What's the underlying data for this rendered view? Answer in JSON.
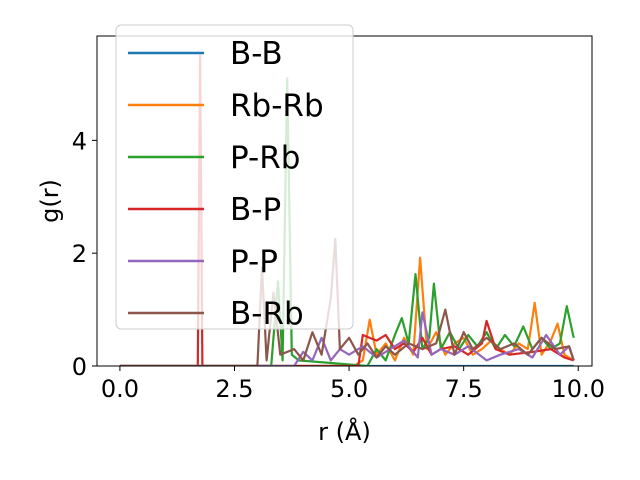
{
  "chart_data": {
    "type": "line",
    "xlabel": "r (Å)",
    "ylabel": "g(r)",
    "xlim": [
      -0.5,
      10.3
    ],
    "ylim": [
      0,
      5.85
    ],
    "xticks": [
      0.0,
      2.5,
      5.0,
      7.5,
      10.0
    ],
    "xtick_labels": [
      "0.0",
      "2.5",
      "5.0",
      "7.5",
      "10.0"
    ],
    "yticks": [
      0,
      2,
      4
    ],
    "ytick_labels": [
      "0",
      "2",
      "4"
    ],
    "grid": false,
    "legend_position": "upper-left",
    "series": [
      {
        "name": "B-B",
        "color": "#1f77b4",
        "points": [
          [
            0,
            0
          ],
          [
            9.9,
            0
          ]
        ]
      },
      {
        "name": "Rb-Rb",
        "color": "#ff7f0e",
        "points": [
          [
            0,
            0
          ],
          [
            5.1,
            0
          ],
          [
            5.3,
            0.1
          ],
          [
            5.45,
            0.82
          ],
          [
            5.6,
            0.2
          ],
          [
            5.8,
            0.4
          ],
          [
            6.0,
            0.1
          ],
          [
            6.2,
            0.5
          ],
          [
            6.4,
            0.2
          ],
          [
            6.55,
            1.92
          ],
          [
            6.7,
            0.3
          ],
          [
            6.9,
            0.6
          ],
          [
            7.1,
            0.2
          ],
          [
            7.3,
            0.4
          ],
          [
            7.5,
            0.5
          ],
          [
            7.7,
            0.2
          ],
          [
            7.9,
            0.3
          ],
          [
            8.1,
            0.45
          ],
          [
            8.3,
            0.3
          ],
          [
            8.5,
            0.2
          ],
          [
            8.7,
            0.4
          ],
          [
            8.9,
            0.3
          ],
          [
            9.05,
            1.12
          ],
          [
            9.2,
            0.2
          ],
          [
            9.4,
            0.45
          ],
          [
            9.55,
            0.75
          ],
          [
            9.7,
            0.2
          ],
          [
            9.9,
            0.1
          ]
        ]
      },
      {
        "name": "P-Rb",
        "color": "#2ca02c",
        "points": [
          [
            0,
            0
          ],
          [
            3.3,
            0
          ],
          [
            3.45,
            1.5
          ],
          [
            3.55,
            0.1
          ],
          [
            3.65,
            5.1
          ],
          [
            3.75,
            0.2
          ],
          [
            3.9,
            0.1
          ],
          [
            5.4,
            0
          ],
          [
            5.6,
            0.3
          ],
          [
            5.8,
            0.1
          ],
          [
            6.0,
            0.55
          ],
          [
            6.15,
            0.85
          ],
          [
            6.3,
            0.4
          ],
          [
            6.45,
            1.63
          ],
          [
            6.6,
            0.3
          ],
          [
            6.75,
            0.5
          ],
          [
            6.85,
            1.46
          ],
          [
            7.0,
            0.3
          ],
          [
            7.2,
            0.6
          ],
          [
            7.4,
            0.3
          ],
          [
            7.6,
            0.55
          ],
          [
            7.8,
            0.35
          ],
          [
            8.0,
            0.6
          ],
          [
            8.2,
            0.3
          ],
          [
            8.4,
            0.55
          ],
          [
            8.6,
            0.35
          ],
          [
            8.8,
            0.7
          ],
          [
            9.0,
            0.3
          ],
          [
            9.2,
            0.5
          ],
          [
            9.4,
            0.3
          ],
          [
            9.6,
            0.4
          ],
          [
            9.75,
            1.06
          ],
          [
            9.9,
            0.5
          ]
        ]
      },
      {
        "name": "B-P",
        "color": "#d62728",
        "points": [
          [
            0,
            0
          ],
          [
            1.7,
            0
          ],
          [
            1.75,
            5.5
          ],
          [
            1.8,
            0
          ],
          [
            1.9,
            0
          ],
          [
            3.5,
            0
          ],
          [
            5.2,
            0
          ],
          [
            5.3,
            0.55
          ],
          [
            5.6,
            0.45
          ],
          [
            5.8,
            0.55
          ],
          [
            6.0,
            0.3
          ],
          [
            6.2,
            0.4
          ],
          [
            6.4,
            0.25
          ],
          [
            6.6,
            0.5
          ],
          [
            6.8,
            0.2
          ],
          [
            7.0,
            0.3
          ],
          [
            7.3,
            0.35
          ],
          [
            7.6,
            0.2
          ],
          [
            7.9,
            0.4
          ],
          [
            8.0,
            0.8
          ],
          [
            8.2,
            0.3
          ],
          [
            8.5,
            0.2
          ],
          [
            9.0,
            0.25
          ],
          [
            9.4,
            0.3
          ],
          [
            9.7,
            0.15
          ],
          [
            9.9,
            0.1
          ]
        ]
      },
      {
        "name": "P-P",
        "color": "#9467bd",
        "points": [
          [
            0,
            0
          ],
          [
            3.8,
            0
          ],
          [
            4.0,
            0.25
          ],
          [
            4.2,
            0.1
          ],
          [
            4.4,
            0.5
          ],
          [
            4.6,
            0.1
          ],
          [
            4.8,
            0.3
          ],
          [
            5.0,
            0.2
          ],
          [
            5.3,
            0.35
          ],
          [
            5.6,
            0.15
          ],
          [
            5.9,
            0.3
          ],
          [
            6.2,
            0.45
          ],
          [
            6.5,
            0.15
          ],
          [
            6.6,
            0.95
          ],
          [
            6.8,
            0.2
          ],
          [
            7.0,
            0.3
          ],
          [
            7.3,
            0.2
          ],
          [
            7.6,
            0.35
          ],
          [
            8.0,
            0.1
          ],
          [
            8.3,
            0.2
          ],
          [
            8.7,
            0.3
          ],
          [
            9.0,
            0.15
          ],
          [
            9.3,
            0.55
          ],
          [
            9.6,
            0.2
          ],
          [
            9.8,
            0.35
          ],
          [
            9.9,
            0.1
          ]
        ]
      },
      {
        "name": "B-Rb",
        "color": "#8c564b",
        "points": [
          [
            0,
            0
          ],
          [
            3.0,
            0
          ],
          [
            3.1,
            1.75
          ],
          [
            3.2,
            0.1
          ],
          [
            3.35,
            1.3
          ],
          [
            3.5,
            0.2
          ],
          [
            3.8,
            0.3
          ],
          [
            4.0,
            0.1
          ],
          [
            4.2,
            0.6
          ],
          [
            4.4,
            0.2
          ],
          [
            4.6,
            1.2
          ],
          [
            4.7,
            2.25
          ],
          [
            4.8,
            0.3
          ],
          [
            5.0,
            0.5
          ],
          [
            5.2,
            0.2
          ],
          [
            5.4,
            0.4
          ],
          [
            5.6,
            0.15
          ],
          [
            5.8,
            0.35
          ],
          [
            6.0,
            0.2
          ],
          [
            6.3,
            0.4
          ],
          [
            6.6,
            0.3
          ],
          [
            6.9,
            0.4
          ],
          [
            7.1,
            1.0
          ],
          [
            7.3,
            0.2
          ],
          [
            7.5,
            0.6
          ],
          [
            7.7,
            0.3
          ],
          [
            8.0,
            0.5
          ],
          [
            8.3,
            0.3
          ],
          [
            8.6,
            0.4
          ],
          [
            8.9,
            0.2
          ],
          [
            9.2,
            0.5
          ],
          [
            9.5,
            0.3
          ],
          [
            9.8,
            0.35
          ],
          [
            9.9,
            0.1
          ]
        ]
      }
    ]
  }
}
